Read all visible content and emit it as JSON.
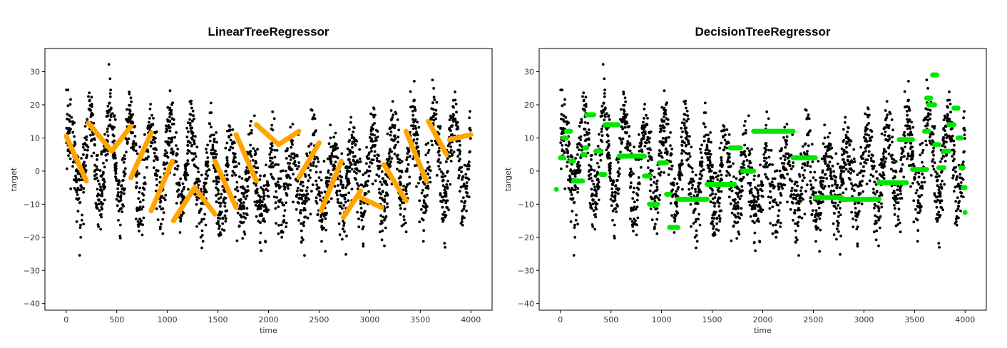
{
  "chart_data": [
    {
      "type": "scatter",
      "title": "LinearTreeRegressor",
      "xlabel": "time",
      "ylabel": "target",
      "xlim": [
        -210,
        4210
      ],
      "ylim": [
        -42,
        37
      ],
      "xticks": [
        0,
        500,
        1000,
        1500,
        2000,
        2500,
        3000,
        3500,
        4000
      ],
      "yticks": [
        -40,
        -30,
        -20,
        -10,
        0,
        10,
        20,
        30
      ],
      "grid": false,
      "legend": "none",
      "colors": {
        "points": "#000000",
        "fit": "#FFA500"
      },
      "fit_segments": [
        {
          "x": [
            0,
            200
          ],
          "y": [
            10.5,
            -3
          ]
        },
        {
          "x": [
            220,
            450
          ],
          "y": [
            14.5,
            6
          ]
        },
        {
          "x": [
            450,
            640
          ],
          "y": [
            6,
            13.5
          ]
        },
        {
          "x": [
            640,
            840
          ],
          "y": [
            -2,
            11.5
          ]
        },
        {
          "x": [
            840,
            1050
          ],
          "y": [
            -12,
            3
          ]
        },
        {
          "x": [
            1060,
            1270
          ],
          "y": [
            -15,
            -5
          ]
        },
        {
          "x": [
            1270,
            1470
          ],
          "y": [
            -5,
            -13
          ]
        },
        {
          "x": [
            1470,
            1680
          ],
          "y": [
            3,
            -11
          ]
        },
        {
          "x": [
            1680,
            1880
          ],
          "y": [
            11,
            -3
          ]
        },
        {
          "x": [
            1880,
            2100
          ],
          "y": [
            14,
            8
          ]
        },
        {
          "x": [
            2100,
            2300
          ],
          "y": [
            8,
            12
          ]
        },
        {
          "x": [
            2300,
            2500
          ],
          "y": [
            -2,
            8.5
          ]
        },
        {
          "x": [
            2520,
            2720
          ],
          "y": [
            -12,
            3
          ]
        },
        {
          "x": [
            2740,
            2910
          ],
          "y": [
            -14,
            -6
          ]
        },
        {
          "x": [
            2910,
            3120
          ],
          "y": [
            -8,
            -11
          ]
        },
        {
          "x": [
            3140,
            3360
          ],
          "y": [
            2,
            -9
          ]
        },
        {
          "x": [
            3360,
            3560
          ],
          "y": [
            12,
            -3
          ]
        },
        {
          "x": [
            3580,
            3760
          ],
          "y": [
            15,
            5
          ]
        },
        {
          "x": [
            3790,
            4000
          ],
          "y": [
            9.5,
            11
          ]
        }
      ]
    },
    {
      "type": "scatter",
      "title": "DecisionTreeRegressor",
      "xlabel": "time",
      "ylabel": "target",
      "xlim": [
        -210,
        4210
      ],
      "ylim": [
        -42,
        37
      ],
      "xticks": [
        0,
        500,
        1000,
        1500,
        2000,
        2500,
        3000,
        3500,
        4000
      ],
      "yticks": [
        -40,
        -30,
        -20,
        -10,
        0,
        10,
        20,
        30
      ],
      "grid": false,
      "legend": "none",
      "colors": {
        "points": "#000000",
        "fit": "#00E600"
      },
      "fit_steps": [
        {
          "x": [
            0,
            30
          ],
          "y": 4
        },
        {
          "x": [
            30,
            60
          ],
          "y": 10
        },
        {
          "x": [
            60,
            100
          ],
          "y": 12
        },
        {
          "x": [
            100,
            130
          ],
          "y": 3
        },
        {
          "x": [
            130,
            220
          ],
          "y": -3
        },
        {
          "x": [
            220,
            240
          ],
          "y": 5
        },
        {
          "x": [
            240,
            260
          ],
          "y": 7
        },
        {
          "x": [
            260,
            330
          ],
          "y": 17
        },
        {
          "x": [
            350,
            400
          ],
          "y": 6
        },
        {
          "x": [
            400,
            440
          ],
          "y": -1
        },
        {
          "x": [
            440,
            570
          ],
          "y": 14
        },
        {
          "x": [
            580,
            830
          ],
          "y": 4.5
        },
        {
          "x": [
            830,
            880
          ],
          "y": -1.5
        },
        {
          "x": [
            880,
            960
          ],
          "y": -10
        },
        {
          "x": [
            980,
            1050
          ],
          "y": 2.5
        },
        {
          "x": [
            1050,
            1080
          ],
          "y": -7
        },
        {
          "x": [
            1080,
            1160
          ],
          "y": -17
        },
        {
          "x": [
            1160,
            1450
          ],
          "y": -8.5
        },
        {
          "x": [
            1450,
            1720
          ],
          "y": -4
        },
        {
          "x": [
            1680,
            1780
          ],
          "y": 7
        },
        {
          "x": [
            1800,
            1910
          ],
          "y": 0
        },
        {
          "x": [
            1910,
            2300
          ],
          "y": 12
        },
        {
          "x": [
            2300,
            2520
          ],
          "y": 4
        },
        {
          "x": [
            2520,
            2780
          ],
          "y": -8
        },
        {
          "x": [
            2780,
            3150
          ],
          "y": -8.5
        },
        {
          "x": [
            3150,
            3420
          ],
          "y": -3.5
        },
        {
          "x": [
            3350,
            3480
          ],
          "y": 9.5
        },
        {
          "x": [
            3480,
            3620
          ],
          "y": 0.5
        },
        {
          "x": [
            3600,
            3640
          ],
          "y": 12
        },
        {
          "x": [
            3620,
            3660
          ],
          "y": 22
        },
        {
          "x": [
            3640,
            3700
          ],
          "y": 20
        },
        {
          "x": [
            3680,
            3720
          ],
          "y": 29
        },
        {
          "x": [
            3700,
            3740
          ],
          "y": 8
        },
        {
          "x": [
            3740,
            3790
          ],
          "y": 1
        },
        {
          "x": [
            3790,
            3840
          ],
          "y": 6
        },
        {
          "x": [
            3840,
            3890
          ],
          "y": 14
        },
        {
          "x": [
            3890,
            3930
          ],
          "y": 19
        },
        {
          "x": [
            3930,
            3960
          ],
          "y": 10
        },
        {
          "x": [
            3960,
            3980
          ],
          "y": 1
        },
        {
          "x": [
            3980,
            4000
          ],
          "y": -5
        }
      ],
      "extra_points": [
        {
          "x": -40,
          "y": -5.5
        },
        {
          "x": 4000,
          "y": -12.5
        }
      ]
    }
  ]
}
